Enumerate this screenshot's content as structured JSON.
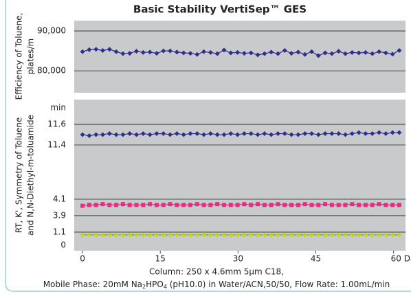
{
  "chart_data": [
    {
      "type": "line",
      "title": "Basic Stability VertiSep™ GES",
      "ylabel": [
        "Efficiency of Toluene,",
        "plates/m"
      ],
      "x": [
        0,
        1.3,
        2.6,
        3.9,
        5.2,
        6.5,
        7.8,
        9.1,
        10.4,
        11.7,
        13,
        14.3,
        15.6,
        16.9,
        18.2,
        19.5,
        20.8,
        22.1,
        23.4,
        24.7,
        26,
        27.3,
        28.6,
        29.9,
        31.2,
        32.5,
        33.8,
        35.1,
        36.4,
        37.7,
        39,
        40.3,
        41.6,
        42.9,
        44.2,
        45.5,
        46.8,
        48.1,
        49.4,
        50.7,
        52,
        53.3,
        54.6,
        55.9,
        57.2,
        58.5,
        59.8,
        61.1
      ],
      "series": [
        {
          "color": "#2e2f8a",
          "values": [
            84800,
            85300,
            85400,
            85100,
            85400,
            84800,
            84300,
            84400,
            84900,
            84600,
            84700,
            84400,
            85000,
            85000,
            84700,
            84500,
            84400,
            84100,
            84800,
            84600,
            84300,
            85200,
            84500,
            84600,
            84400,
            84500,
            84000,
            84300,
            84700,
            84300,
            85100,
            84400,
            84700,
            84100,
            84800,
            83800,
            84500,
            84300,
            84900,
            84300,
            84600,
            84500,
            84600,
            84300,
            84800,
            84500,
            84200,
            85100
          ]
        }
      ],
      "xlim": [
        -1.6,
        62.3
      ],
      "ylim": [
        74500,
        92600
      ],
      "yticks": [
        {
          "value": 80000,
          "label": "80,000"
        },
        {
          "value": 90000,
          "label": "90,000"
        }
      ],
      "grid": true
    },
    {
      "type": "line",
      "ylabel": [
        "RT, K', Symmetry of Toluene",
        "and N,N-Diethyl-m-toluamide"
      ],
      "yunit": "min",
      "x": [
        0,
        1.3,
        2.6,
        3.9,
        5.2,
        6.5,
        7.8,
        9.1,
        10.4,
        11.7,
        13,
        14.3,
        15.6,
        16.9,
        18.2,
        19.5,
        20.8,
        22.1,
        23.4,
        24.7,
        26,
        27.3,
        28.6,
        29.9,
        31.2,
        32.5,
        33.8,
        35.1,
        36.4,
        37.7,
        39,
        40.3,
        41.6,
        42.9,
        44.2,
        45.5,
        46.8,
        48.1,
        49.4,
        50.7,
        52,
        53.3,
        54.6,
        55.9,
        57.2,
        58.5,
        59.8,
        61.1
      ],
      "series": [
        {
          "color": "#2e2f8a",
          "values": [
            11.5,
            11.49,
            11.5,
            11.5,
            11.51,
            11.5,
            11.5,
            11.51,
            11.5,
            11.51,
            11.5,
            11.51,
            11.51,
            11.5,
            11.51,
            11.5,
            11.51,
            11.51,
            11.5,
            11.51,
            11.5,
            11.5,
            11.51,
            11.5,
            11.51,
            11.51,
            11.5,
            11.51,
            11.5,
            11.51,
            11.51,
            11.5,
            11.5,
            11.51,
            11.51,
            11.5,
            11.51,
            11.51,
            11.51,
            11.5,
            11.51,
            11.52,
            11.51,
            11.51,
            11.52,
            11.51,
            11.52,
            11.52
          ]
        },
        {
          "color": "#e0307f",
          "values": [
            4.02,
            4.03,
            4.03,
            4.04,
            4.03,
            4.03,
            4.04,
            4.03,
            4.03,
            4.03,
            4.04,
            4.03,
            4.03,
            4.04,
            4.03,
            4.03,
            4.03,
            4.04,
            4.03,
            4.03,
            4.04,
            4.03,
            4.03,
            4.03,
            4.04,
            4.03,
            4.04,
            4.03,
            4.03,
            4.04,
            4.03,
            4.03,
            4.03,
            4.04,
            4.03,
            4.03,
            4.04,
            4.03,
            4.03,
            4.03,
            4.04,
            4.03,
            4.03,
            4.03,
            4.04,
            4.03,
            4.03,
            4.03
          ]
        },
        {
          "color": "#c8d400",
          "values": [
            0.87,
            0.88,
            0.87,
            0.87,
            0.88,
            0.87,
            0.87,
            0.88,
            0.87,
            0.87,
            0.87,
            0.88,
            0.87,
            0.87,
            0.88,
            0.87,
            0.87,
            0.87,
            0.88,
            0.87,
            0.87,
            0.88,
            0.87,
            0.87,
            0.87,
            0.88,
            0.87,
            0.87,
            0.88,
            0.87,
            0.87,
            0.87,
            0.88,
            0.87,
            0.87,
            0.88,
            0.87,
            0.87,
            0.87,
            0.88,
            0.87,
            0.87,
            0.88,
            0.87,
            0.87,
            0.87,
            0.88,
            0.87
          ]
        }
      ],
      "xlim": [
        -1.6,
        62.3
      ],
      "ylim": [
        -0.46,
        11.84
      ],
      "xticks": [
        0,
        15,
        30,
        45,
        {
          "value": 60,
          "label": "60 Day"
        }
      ],
      "yticks": [
        0,
        1.1,
        3.9,
        4.1,
        11.4,
        11.6
      ],
      "grid": true
    }
  ],
  "footnote": {
    "line1": "Column: 250 x 4.6mm 5μm C18,",
    "line2": [
      "Mobile Phase: 20mM Na",
      "2",
      "HPO",
      "4",
      " (pH10.0) in Water/ACN,50/50, Flow Rate: 1.00mL/min"
    ]
  }
}
